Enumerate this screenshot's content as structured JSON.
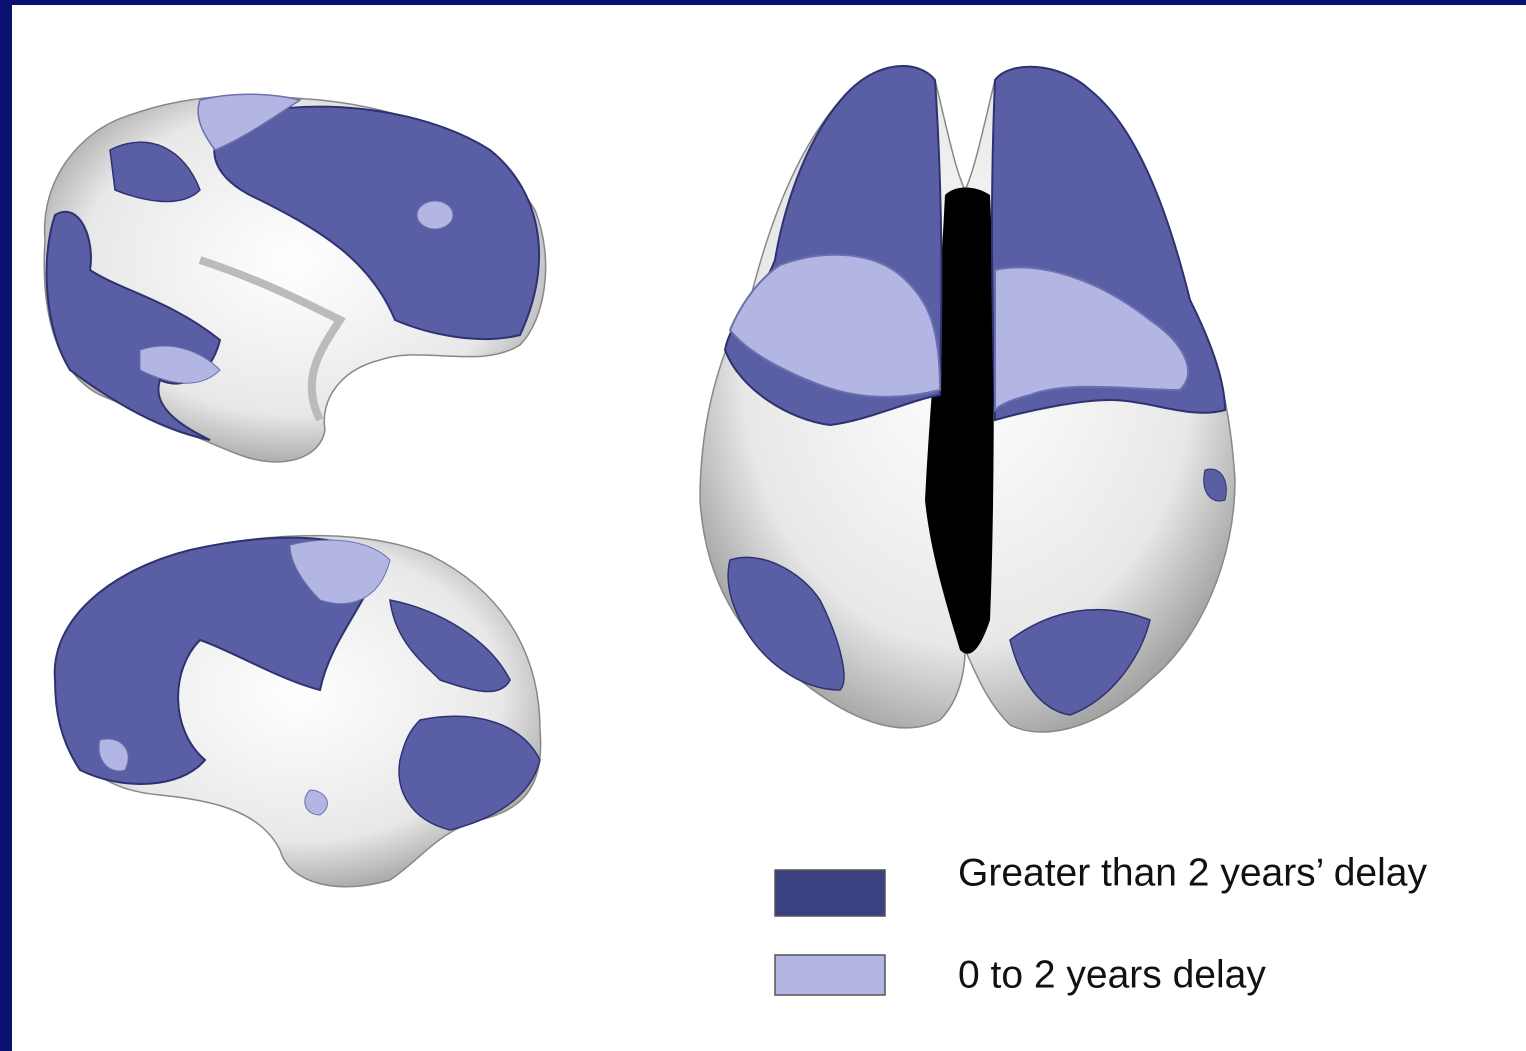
{
  "legend": {
    "items": [
      {
        "label": "Greater than 2 years’ delay",
        "color": "#3b4180"
      },
      {
        "label": "0 to 2 years delay",
        "color": "#b3b6e2"
      }
    ]
  }
}
